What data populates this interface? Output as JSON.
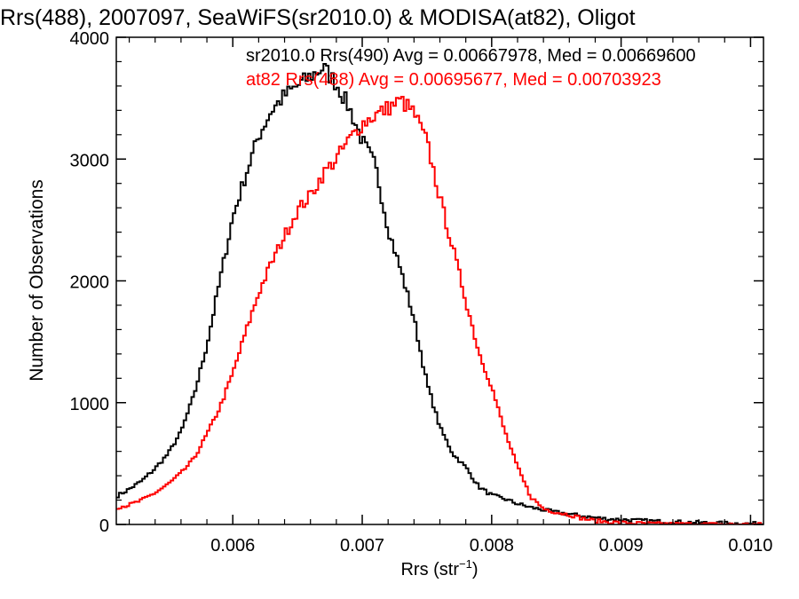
{
  "chart_data": {
    "type": "line",
    "title": "Rrs(488), 2007097, SeaWiFS(sr2010.0) & MODISA(at82), Oligot",
    "xlabel": "Rrs (str",
    "xlabel_sup": "−1",
    "xlabel_close": ")",
    "ylabel": "Number of Observations",
    "xlim": [
      0.0051,
      0.0101
    ],
    "ylim": [
      0,
      4000
    ],
    "x_ticks": [
      0.006,
      0.007,
      0.008,
      0.009,
      0.01
    ],
    "x_tick_labels": [
      "0.006",
      "0.007",
      "0.008",
      "0.009",
      "0.010"
    ],
    "y_ticks": [
      0,
      1000,
      2000,
      3000,
      4000
    ],
    "y_tick_labels": [
      "0",
      "1000",
      "2000",
      "3000",
      "4000"
    ],
    "grid": false,
    "legend_position": "top-right",
    "series": [
      {
        "name": "sr2010.0 Rrs(490) Avg = 0.00667978, Med = 0.00669600",
        "color": "#000000",
        "points": [
          [
            0.0051,
            230
          ],
          [
            0.0052,
            290
          ],
          [
            0.0053,
            360
          ],
          [
            0.0054,
            460
          ],
          [
            0.0055,
            580
          ],
          [
            0.0056,
            760
          ],
          [
            0.0057,
            1060
          ],
          [
            0.0058,
            1470
          ],
          [
            0.0059,
            2000
          ],
          [
            0.006,
            2520
          ],
          [
            0.0061,
            2870
          ],
          [
            0.0062,
            3190
          ],
          [
            0.0063,
            3400
          ],
          [
            0.0064,
            3520
          ],
          [
            0.0065,
            3600
          ],
          [
            0.0066,
            3680
          ],
          [
            0.0067,
            3750
          ],
          [
            0.0068,
            3620
          ],
          [
            0.0069,
            3420
          ],
          [
            0.007,
            3150
          ],
          [
            0.0071,
            2950
          ],
          [
            0.0072,
            2430
          ],
          [
            0.0073,
            2080
          ],
          [
            0.0074,
            1690
          ],
          [
            0.0075,
            1160
          ],
          [
            0.0076,
            800
          ],
          [
            0.0077,
            580
          ],
          [
            0.0078,
            470
          ],
          [
            0.0079,
            310
          ],
          [
            0.008,
            240
          ],
          [
            0.0081,
            210
          ],
          [
            0.0082,
            170
          ],
          [
            0.0083,
            140
          ],
          [
            0.0084,
            120
          ],
          [
            0.0085,
            100
          ],
          [
            0.0086,
            85
          ],
          [
            0.0087,
            70
          ],
          [
            0.0088,
            55
          ],
          [
            0.0089,
            45
          ],
          [
            0.009,
            40
          ],
          [
            0.0091,
            35
          ],
          [
            0.0092,
            30
          ],
          [
            0.0093,
            25
          ],
          [
            0.0094,
            22
          ],
          [
            0.0095,
            18
          ],
          [
            0.0096,
            15
          ],
          [
            0.0097,
            12
          ],
          [
            0.0098,
            10
          ],
          [
            0.0099,
            8
          ],
          [
            0.01,
            6
          ],
          [
            0.0101,
            5
          ]
        ]
      },
      {
        "name": "at82 Rrs(488) Avg = 0.00695677, Med = 0.00703923",
        "color": "#ff0000",
        "points": [
          [
            0.0051,
            140
          ],
          [
            0.0052,
            160
          ],
          [
            0.0053,
            200
          ],
          [
            0.0054,
            260
          ],
          [
            0.0055,
            330
          ],
          [
            0.0056,
            420
          ],
          [
            0.0057,
            540
          ],
          [
            0.0058,
            740
          ],
          [
            0.0059,
            960
          ],
          [
            0.006,
            1240
          ],
          [
            0.0061,
            1580
          ],
          [
            0.0062,
            1900
          ],
          [
            0.0063,
            2150
          ],
          [
            0.0064,
            2370
          ],
          [
            0.0065,
            2580
          ],
          [
            0.0066,
            2700
          ],
          [
            0.0067,
            2880
          ],
          [
            0.0068,
            3000
          ],
          [
            0.0069,
            3160
          ],
          [
            0.007,
            3290
          ],
          [
            0.0071,
            3360
          ],
          [
            0.0072,
            3420
          ],
          [
            0.0073,
            3480
          ],
          [
            0.0074,
            3380
          ],
          [
            0.0075,
            3140
          ],
          [
            0.0076,
            2680
          ],
          [
            0.0077,
            2270
          ],
          [
            0.0078,
            1840
          ],
          [
            0.0079,
            1420
          ],
          [
            0.008,
            1130
          ],
          [
            0.0081,
            770
          ],
          [
            0.0082,
            470
          ],
          [
            0.0083,
            230
          ],
          [
            0.0084,
            130
          ],
          [
            0.0085,
            100
          ],
          [
            0.0086,
            80
          ],
          [
            0.0087,
            50
          ],
          [
            0.0088,
            30
          ],
          [
            0.0089,
            20
          ],
          [
            0.009,
            15
          ],
          [
            0.0091,
            10
          ],
          [
            0.0092,
            8
          ],
          [
            0.0093,
            5
          ],
          [
            0.0094,
            4
          ],
          [
            0.0095,
            3
          ],
          [
            0.0096,
            2
          ],
          [
            0.0097,
            2
          ],
          [
            0.0098,
            1
          ],
          [
            0.0099,
            1
          ],
          [
            0.01,
            0
          ],
          [
            0.0101,
            0
          ]
        ]
      }
    ]
  }
}
